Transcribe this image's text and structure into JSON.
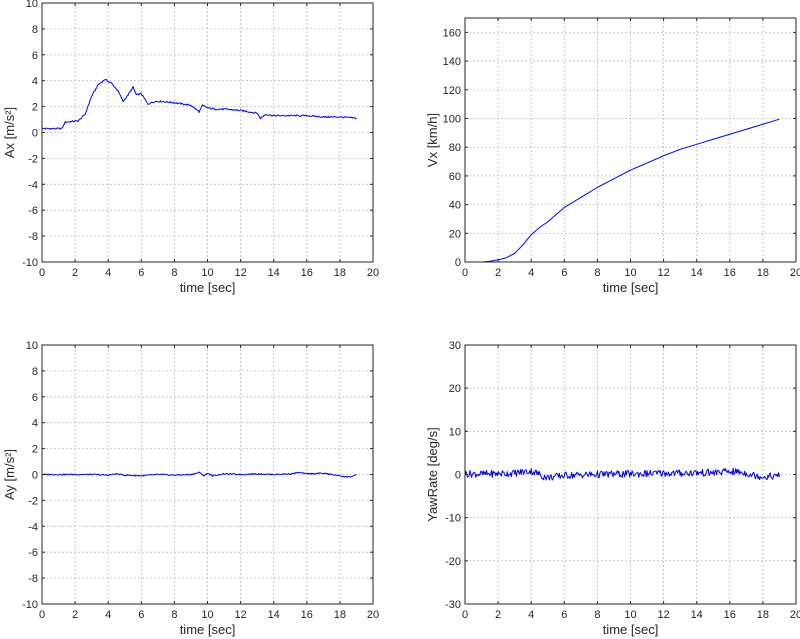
{
  "chart_data": [
    {
      "type": "line",
      "xlabel": "time [sec]",
      "ylabel": "Ax [m/s²]",
      "xlim": [
        0,
        20
      ],
      "ylim": [
        -10,
        10
      ],
      "xticks": [
        0,
        2,
        4,
        6,
        8,
        10,
        12,
        14,
        16,
        18,
        20
      ],
      "yticks": [
        -10,
        -8,
        -6,
        -4,
        -2,
        0,
        2,
        4,
        6,
        8,
        10
      ],
      "grid": true,
      "series": [
        {
          "name": "Ax",
          "color": "#0000ff",
          "x": [
            0,
            1.2,
            1.4,
            2.2,
            2.6,
            3.0,
            3.4,
            3.8,
            4.2,
            4.6,
            4.9,
            5.2,
            5.5,
            5.7,
            6.0,
            6.4,
            6.8,
            7.2,
            8.0,
            9.0,
            9.5,
            9.7,
            10.0,
            10.5,
            11.0,
            12.0,
            13.0,
            13.2,
            13.5,
            14.0,
            15.0,
            16.0,
            17.0,
            18.0,
            19.0
          ],
          "y": [
            0.3,
            0.3,
            0.8,
            0.9,
            1.4,
            2.8,
            3.7,
            4.1,
            3.8,
            3.2,
            2.4,
            2.9,
            3.5,
            2.9,
            3.0,
            2.2,
            2.4,
            2.4,
            2.3,
            2.1,
            1.6,
            2.1,
            1.9,
            1.8,
            1.8,
            1.7,
            1.5,
            1.1,
            1.4,
            1.3,
            1.3,
            1.3,
            1.2,
            1.2,
            1.1
          ]
        }
      ]
    },
    {
      "type": "line",
      "xlabel": "time [sec]",
      "ylabel": "Vx [km/h]",
      "xlim": [
        0,
        20
      ],
      "ylim": [
        0,
        170
      ],
      "xticks": [
        0,
        2,
        4,
        6,
        8,
        10,
        12,
        14,
        16,
        18,
        20
      ],
      "yticks": [
        0,
        20,
        40,
        60,
        80,
        100,
        120,
        140,
        160
      ],
      "grid": true,
      "series": [
        {
          "name": "Vx",
          "color": "#0000ff",
          "x": [
            0,
            1.0,
            1.5,
            2.0,
            2.5,
            3.0,
            3.5,
            4.0,
            4.5,
            5.0,
            5.5,
            6.0,
            7.0,
            8.0,
            9.0,
            10.0,
            11.0,
            12.0,
            13.0,
            14.0,
            15.0,
            16.0,
            17.0,
            18.0,
            19.0
          ],
          "y": [
            0,
            0,
            0.5,
            1.5,
            3,
            6,
            12,
            19,
            24,
            28,
            33,
            38,
            45,
            52,
            58,
            64,
            69,
            74,
            78.5,
            82,
            85.5,
            89,
            92.5,
            96,
            99.5
          ]
        }
      ]
    },
    {
      "type": "line",
      "xlabel": "time [sec]",
      "ylabel": "Ay [m/s²]",
      "xlim": [
        0,
        20
      ],
      "ylim": [
        -10,
        10
      ],
      "xticks": [
        0,
        2,
        4,
        6,
        8,
        10,
        12,
        14,
        16,
        18,
        20
      ],
      "yticks": [
        -10,
        -8,
        -6,
        -4,
        -2,
        0,
        2,
        4,
        6,
        8,
        10
      ],
      "grid": true,
      "series": [
        {
          "name": "Ay",
          "color": "#0000ff",
          "x": [
            0,
            2,
            3,
            4,
            4.5,
            5,
            6,
            7,
            8,
            9,
            9.5,
            9.8,
            10.0,
            10.3,
            11,
            12,
            13,
            14,
            15,
            15.5,
            16,
            17,
            17.5,
            18,
            18.5,
            19
          ],
          "y": [
            0,
            0,
            0,
            -0.05,
            0.05,
            -0.05,
            -0.1,
            0,
            -0.05,
            0,
            0.15,
            -0.1,
            0.1,
            -0.1,
            0.05,
            0,
            0.05,
            0,
            0.05,
            0.15,
            0.05,
            0.1,
            0,
            -0.1,
            -0.2,
            -0.05
          ]
        }
      ]
    },
    {
      "type": "line",
      "xlabel": "time [sec]",
      "ylabel": "YawRate [deg/s]",
      "xlim": [
        0,
        20
      ],
      "ylim": [
        -30,
        30
      ],
      "xticks": [
        0,
        2,
        4,
        6,
        8,
        10,
        12,
        14,
        16,
        18,
        20
      ],
      "yticks": [
        -30,
        -20,
        -10,
        0,
        10,
        20,
        30
      ],
      "grid": true,
      "series": [
        {
          "name": "YawRate",
          "color": "#0000ff",
          "x": [
            0,
            1,
            2,
            3,
            3.5,
            4.0,
            4.3,
            4.7,
            5.0,
            5.5,
            6,
            7,
            8,
            9,
            10,
            11,
            12,
            13,
            14,
            15,
            16,
            16.5,
            17,
            17.5,
            18,
            18.5,
            19
          ],
          "y": [
            0.2,
            0.1,
            0.2,
            0.3,
            0.6,
            0.8,
            0.4,
            -0.4,
            -0.7,
            -0.5,
            -0.2,
            -0.1,
            0,
            0.1,
            0.1,
            0.2,
            0.3,
            0.3,
            0.4,
            0.4,
            0.7,
            0.6,
            0.3,
            -0.2,
            -0.5,
            -0.4,
            -0.3
          ]
        }
      ]
    }
  ]
}
